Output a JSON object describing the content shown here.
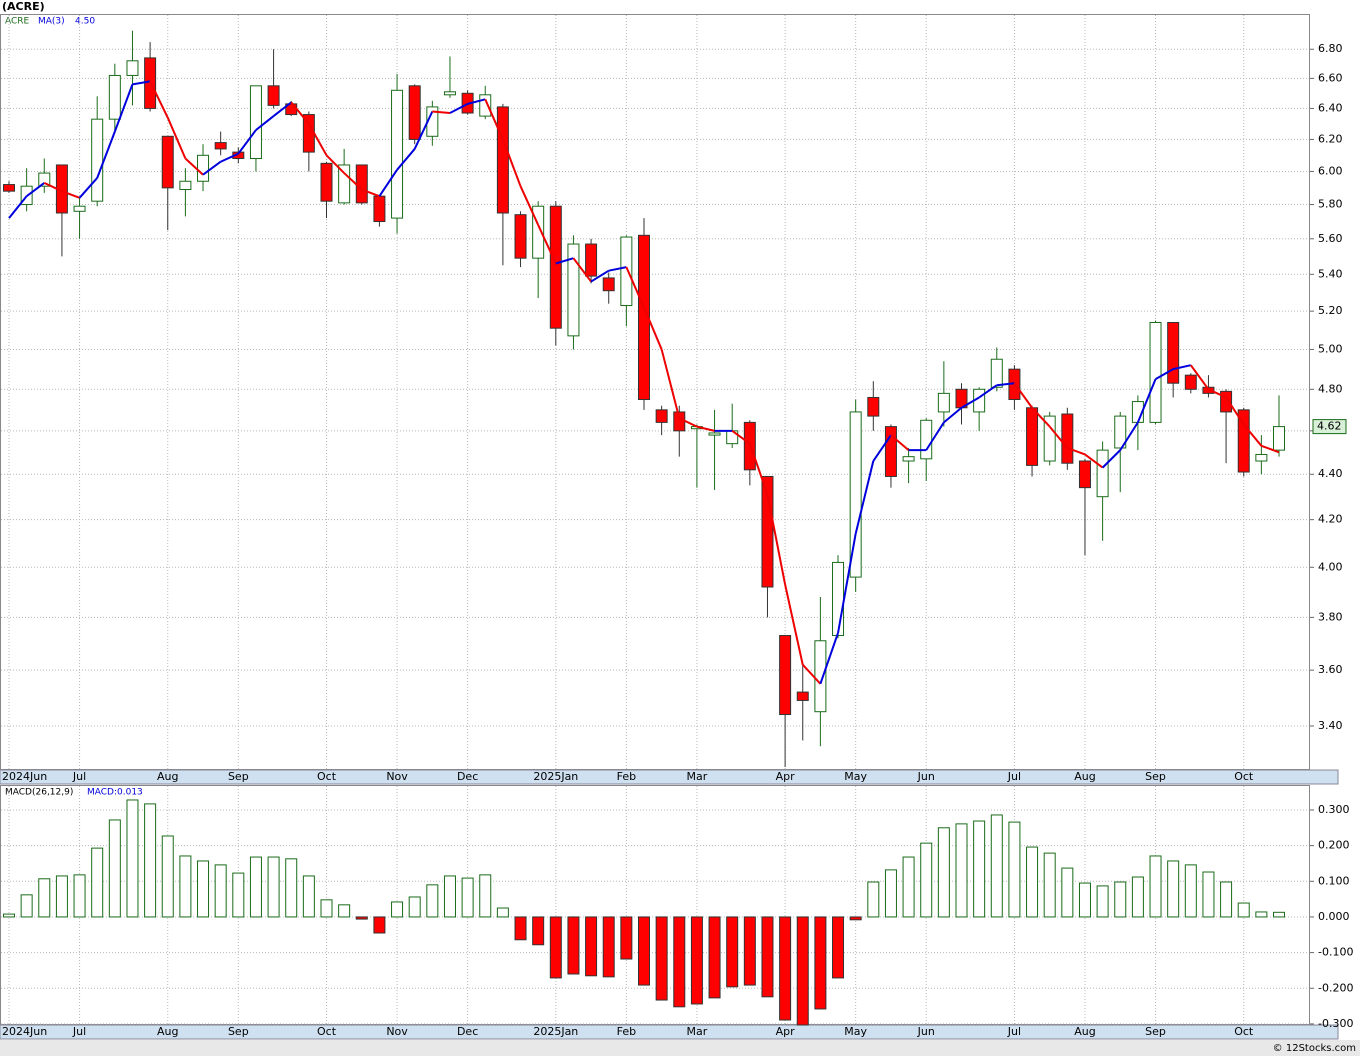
{
  "chart_data": [
    {
      "type": "candlestick",
      "title": "(ACRE)",
      "symbol": "ACRE",
      "log": true,
      "grid": true,
      "up_color": "#ffffff",
      "up_stroke": "#1a6b1a",
      "down_color": "#ff0000",
      "down_stroke": "#333333",
      "categories": [
        "2024Jun",
        null,
        null,
        null,
        "Jul",
        null,
        null,
        null,
        null,
        "Aug",
        null,
        null,
        null,
        "Sep",
        null,
        null,
        null,
        null,
        "Oct",
        null,
        null,
        null,
        "Nov",
        null,
        null,
        null,
        "Dec",
        null,
        null,
        null,
        null,
        "2025Jan",
        null,
        null,
        null,
        "Feb",
        null,
        null,
        null,
        "Mar",
        null,
        null,
        null,
        null,
        "Apr",
        null,
        null,
        null,
        "May",
        null,
        null,
        null,
        "Jun",
        null,
        null,
        null,
        null,
        "Jul",
        null,
        null,
        null,
        "Aug",
        null,
        null,
        null,
        "Sep",
        null,
        null,
        null,
        null,
        "Oct",
        null,
        null
      ],
      "open": [
        5.92,
        5.8,
        5.91,
        6.04,
        5.76,
        5.82,
        6.33,
        6.62,
        6.74,
        6.22,
        5.89,
        5.94,
        6.18,
        6.12,
        6.08,
        6.55,
        6.43,
        6.36,
        6.05,
        5.81,
        6.04,
        5.85,
        5.72,
        6.55,
        6.22,
        6.49,
        6.5,
        6.35,
        6.41,
        5.74,
        5.49,
        5.79,
        5.07,
        5.57,
        5.38,
        5.23,
        5.62,
        4.7,
        4.69,
        4.61,
        4.58,
        4.54,
        4.64,
        4.39,
        3.73,
        3.52,
        3.45,
        3.73,
        3.96,
        4.76,
        4.62,
        4.46,
        4.47,
        4.69,
        4.8,
        4.69,
        4.81,
        4.9,
        4.71,
        4.46,
        4.68,
        4.46,
        4.3,
        4.52,
        4.64,
        4.64,
        5.14,
        4.87,
        4.81,
        4.79,
        4.7,
        4.46,
        4.51
      ],
      "high": [
        5.94,
        6.02,
        6.08,
        6.04,
        5.84,
        6.48,
        6.7,
        6.93,
        6.85,
        6.22,
        6.02,
        6.17,
        6.25,
        6.15,
        6.55,
        6.8,
        6.45,
        6.38,
        6.06,
        6.14,
        6.04,
        5.85,
        6.63,
        6.56,
        6.45,
        6.75,
        6.52,
        6.55,
        6.43,
        5.76,
        5.82,
        5.82,
        5.62,
        5.6,
        5.41,
        5.62,
        5.72,
        4.72,
        4.72,
        4.63,
        4.7,
        4.73,
        4.65,
        4.39,
        3.73,
        3.62,
        3.88,
        4.05,
        4.75,
        4.84,
        4.63,
        4.52,
        4.66,
        4.94,
        4.83,
        4.81,
        5.01,
        4.92,
        4.72,
        4.69,
        4.71,
        4.47,
        4.55,
        4.69,
        4.77,
        5.15,
        5.14,
        4.88,
        4.87,
        4.8,
        4.71,
        4.58,
        4.77
      ],
      "low": [
        5.87,
        5.76,
        5.87,
        5.5,
        5.6,
        5.79,
        6.25,
        6.42,
        6.38,
        5.65,
        5.73,
        5.88,
        6.1,
        6.05,
        6.0,
        6.4,
        6.35,
        6.0,
        5.72,
        5.8,
        5.8,
        5.67,
        5.63,
        6.17,
        6.16,
        6.47,
        6.36,
        6.33,
        5.45,
        5.44,
        5.27,
        5.02,
        5.0,
        5.35,
        5.24,
        5.12,
        4.7,
        4.58,
        4.48,
        4.34,
        4.33,
        4.52,
        4.35,
        3.8,
        3.26,
        3.35,
        3.33,
        3.72,
        3.9,
        4.6,
        4.34,
        4.36,
        4.37,
        4.62,
        4.63,
        4.6,
        4.79,
        4.7,
        4.39,
        4.44,
        4.42,
        4.05,
        4.11,
        4.32,
        4.51,
        4.63,
        4.76,
        4.78,
        4.76,
        4.45,
        4.39,
        4.4,
        4.48
      ],
      "close": [
        5.88,
        5.91,
        5.99,
        5.75,
        5.79,
        6.33,
        6.62,
        6.72,
        6.4,
        5.9,
        5.94,
        6.1,
        6.14,
        6.08,
        6.55,
        6.42,
        6.36,
        6.12,
        5.82,
        6.04,
        5.81,
        5.7,
        6.52,
        6.2,
        6.41,
        6.51,
        6.37,
        6.49,
        5.75,
        5.49,
        5.79,
        5.11,
        5.57,
        5.39,
        5.31,
        5.61,
        4.75,
        4.64,
        4.6,
        4.62,
        4.59,
        4.6,
        4.42,
        3.92,
        3.44,
        3.49,
        3.71,
        4.02,
        4.69,
        4.67,
        4.39,
        4.48,
        4.65,
        4.78,
        4.71,
        4.8,
        4.95,
        4.75,
        4.44,
        4.67,
        4.45,
        4.34,
        4.51,
        4.67,
        4.74,
        5.14,
        4.83,
        4.8,
        4.78,
        4.69,
        4.41,
        4.49,
        4.62
      ],
      "ma": {
        "name": "MA(3)",
        "rise_color": "#0000dd",
        "fall_color": "#ee0000",
        "last_label": "4.50",
        "values": [
          5.72,
          5.85,
          5.93,
          5.88,
          5.84,
          5.96,
          6.25,
          6.56,
          6.58,
          6.34,
          6.08,
          5.98,
          6.06,
          6.11,
          6.26,
          6.35,
          6.44,
          6.3,
          6.1,
          5.99,
          5.89,
          5.85,
          6.01,
          6.14,
          6.38,
          6.37,
          6.43,
          6.46,
          6.2,
          5.91,
          5.68,
          5.46,
          5.49,
          5.36,
          5.42,
          5.44,
          5.22,
          5.0,
          4.66,
          4.62,
          4.6,
          4.6,
          4.54,
          4.31,
          3.93,
          3.62,
          3.55,
          3.74,
          4.14,
          4.46,
          4.58,
          4.51,
          4.51,
          4.64,
          4.71,
          4.76,
          4.82,
          4.83,
          4.71,
          4.62,
          4.52,
          4.49,
          4.43,
          4.51,
          4.64,
          4.85,
          4.9,
          4.92,
          4.8,
          4.76,
          4.63,
          4.53,
          4.5
        ]
      },
      "ylim": [
        3.25,
        7.05
      ],
      "yticks": [
        {
          "value": 3.4,
          "label": "3.40"
        },
        {
          "value": 3.6,
          "label": "3.60"
        },
        {
          "value": 3.8,
          "label": "3.80"
        },
        {
          "value": 4.0,
          "label": "4.00"
        },
        {
          "value": 4.2,
          "label": "4.20"
        },
        {
          "value": 4.4,
          "label": "4.40"
        },
        {
          "value": 4.6,
          "label": "4.60"
        },
        {
          "value": 4.8,
          "label": "4.80"
        },
        {
          "value": 5.0,
          "label": "5.00"
        },
        {
          "value": 5.2,
          "label": "5.20"
        },
        {
          "value": 5.4,
          "label": "5.40"
        },
        {
          "value": 5.6,
          "label": "5.60"
        },
        {
          "value": 5.8,
          "label": "5.80"
        },
        {
          "value": 6.0,
          "label": "6.00"
        },
        {
          "value": 6.2,
          "label": "6.20"
        },
        {
          "value": 6.4,
          "label": "6.40"
        },
        {
          "value": 6.6,
          "label": "6.60"
        },
        {
          "value": 6.8,
          "label": "6.80"
        }
      ]
    },
    {
      "type": "bar",
      "title": "MACD(26,12,9)",
      "value_label": "MACD:0.013",
      "grid": true,
      "pos_color": "#ffffff",
      "pos_stroke": "#1a6b1a",
      "neg_color": "#ff0000",
      "neg_stroke": "#333333",
      "values": [
        0.008,
        0.062,
        0.107,
        0.115,
        0.118,
        0.193,
        0.272,
        0.328,
        0.317,
        0.227,
        0.171,
        0.157,
        0.146,
        0.123,
        0.168,
        0.168,
        0.163,
        0.115,
        0.048,
        0.034,
        -0.006,
        -0.045,
        0.042,
        0.056,
        0.09,
        0.115,
        0.109,
        0.118,
        0.025,
        -0.064,
        -0.078,
        -0.171,
        -0.16,
        -0.165,
        -0.168,
        -0.118,
        -0.191,
        -0.233,
        -0.252,
        -0.244,
        -0.227,
        -0.196,
        -0.191,
        -0.224,
        -0.289,
        -0.303,
        -0.258,
        -0.171,
        -0.008,
        0.098,
        0.132,
        0.168,
        0.207,
        0.25,
        0.261,
        0.269,
        0.286,
        0.266,
        0.196,
        0.179,
        0.137,
        0.095,
        0.087,
        0.098,
        0.112,
        0.171,
        0.157,
        0.146,
        0.126,
        0.098,
        0.039,
        0.014,
        0.013
      ],
      "ylim": [
        -0.303,
        0.37
      ],
      "yticks": [
        {
          "value": -0.3,
          "label": "-0.300"
        },
        {
          "value": -0.2,
          "label": "-0.200"
        },
        {
          "value": -0.1,
          "label": "-0.100"
        },
        {
          "value": 0,
          "label": "0.000"
        },
        {
          "value": 0.1,
          "label": "0.100"
        },
        {
          "value": 0.2,
          "label": "0.200"
        },
        {
          "value": 0.3,
          "label": "0.300"
        }
      ]
    }
  ],
  "footer": "© 12Stocks.com"
}
